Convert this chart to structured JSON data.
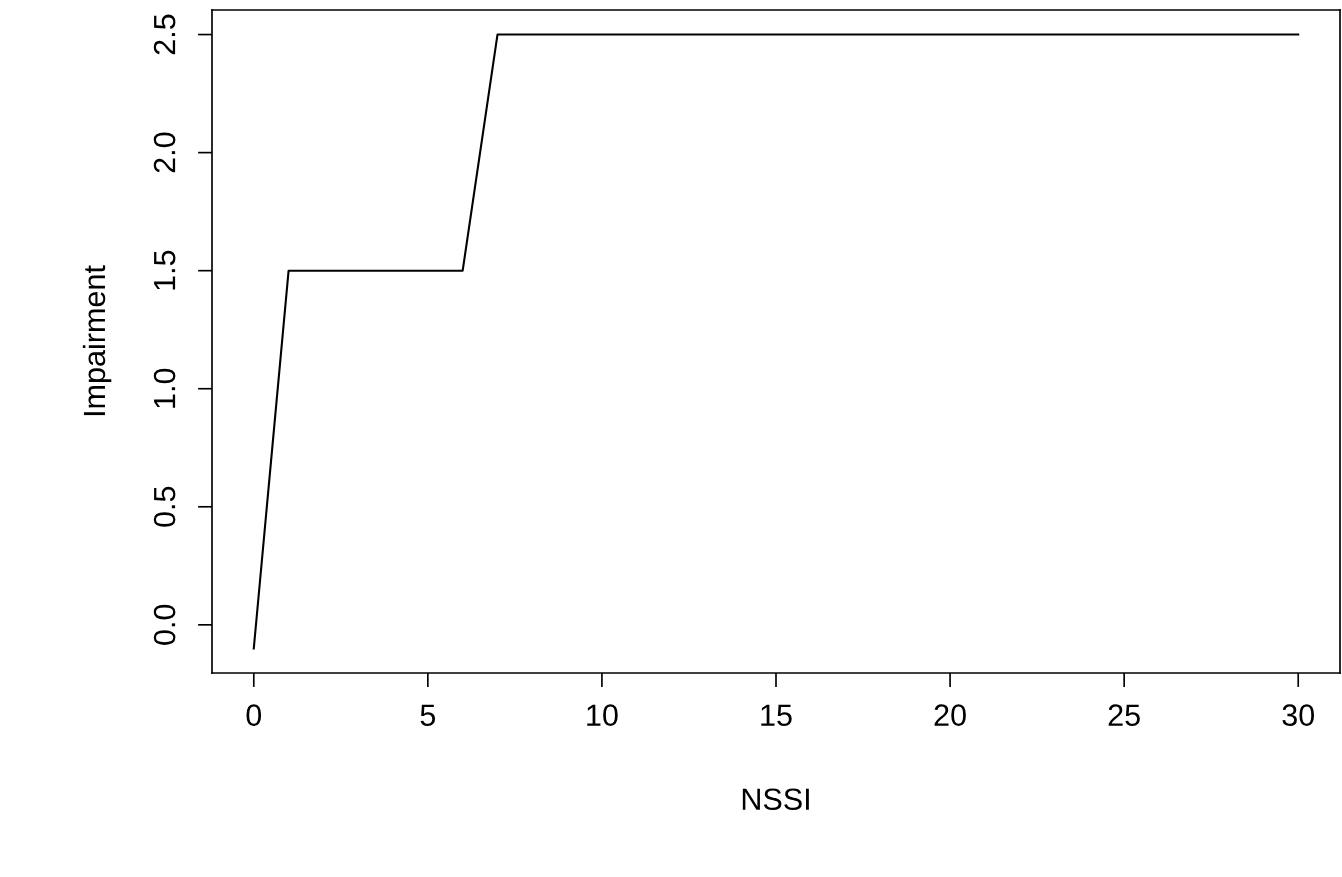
{
  "chart_data": {
    "type": "line",
    "xlabel": "NSSI",
    "ylabel": "Impairment",
    "x": [
      0,
      1,
      6,
      7,
      30
    ],
    "series": [
      {
        "color": "#000000",
        "values": [
          -0.1,
          1.5,
          1.5,
          2.5,
          2.5
        ]
      }
    ],
    "xlim": [
      -1.2,
      31.2
    ],
    "ylim": [
      -0.204,
      2.604
    ],
    "xticks": [
      0,
      5,
      10,
      15,
      20,
      25,
      30
    ],
    "yticks": [
      {
        "value": 0,
        "label": "0.0"
      },
      {
        "value": 0.5,
        "label": "0.5"
      },
      {
        "value": 1,
        "label": "1.0"
      },
      {
        "value": 1.5,
        "label": "1.5"
      },
      {
        "value": 2,
        "label": "2.0"
      },
      {
        "value": 2.5,
        "label": "2.5"
      }
    ],
    "grid": false,
    "marker": "none",
    "line_style": "solid"
  }
}
